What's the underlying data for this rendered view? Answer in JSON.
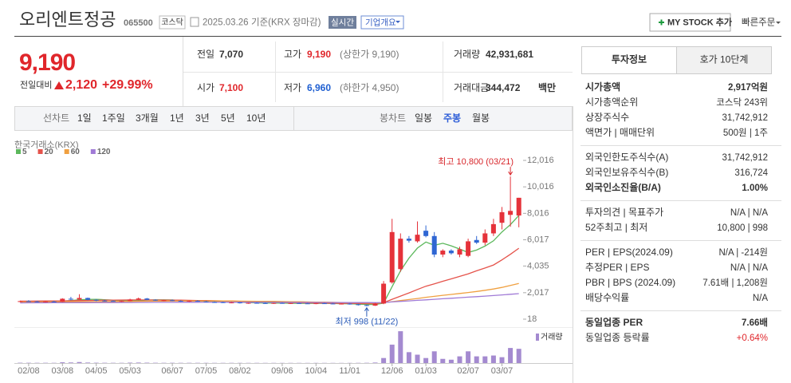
{
  "header": {
    "name": "오리엔트정공",
    "code": "065500",
    "market": "코스닥",
    "date": "2025.03.26",
    "basis": "기준(KRX 장마감)",
    "realtime": "실시간",
    "overview": "기업개요",
    "my_stock": "MY STOCK 추가",
    "quick_order": "빠른주문"
  },
  "price": {
    "current": "9,190",
    "change_label": "전일대비",
    "change": "2,120",
    "change_pct": "+29.99%"
  },
  "summary": [
    {
      "label": "전일",
      "value": "7,070"
    },
    {
      "label": "고가",
      "value": "9,190",
      "note": "(상한가 9,190)",
      "color": "#e0262b"
    },
    {
      "label": "거래량",
      "value": "42,931,681"
    },
    {
      "label": "시가",
      "value": "7,100",
      "color": "#e0262b"
    },
    {
      "label": "저가",
      "value": "6,960",
      "note": "(하한가 4,950)",
      "color": "#1f5fd1"
    },
    {
      "label": "거래대금",
      "value": "344,472",
      "unit": "백만"
    }
  ],
  "period_tabs": {
    "line_label": "선차트",
    "line": [
      "1일",
      "1주일",
      "3개월",
      "1년",
      "3년",
      "5년",
      "10년"
    ],
    "candle_label": "봉차트",
    "candle": [
      "일봉",
      "주봉",
      "월봉"
    ],
    "selected": "주봉"
  },
  "chart_data": {
    "type": "candlestick",
    "source": "한국거래소(KRX)",
    "categories": [
      null,
      "02/08",
      null,
      null,
      null,
      "03/08",
      null,
      null,
      null,
      "04/05",
      null,
      null,
      null,
      "05/03",
      null,
      null,
      null,
      null,
      "06/07",
      null,
      null,
      null,
      "07/05",
      null,
      null,
      null,
      "08/02",
      null,
      null,
      null,
      null,
      "09/06",
      null,
      null,
      null,
      "10/04",
      null,
      null,
      null,
      "11/01",
      null,
      null,
      null,
      null,
      "12/06",
      null,
      null,
      null,
      "01/03",
      null,
      null,
      null,
      null,
      "02/07",
      null,
      null,
      null,
      "03/07",
      null,
      null
    ],
    "ohlc": {
      "open": [
        1350,
        1380,
        1360,
        1320,
        1350,
        1330,
        1560,
        1500,
        1620,
        1480,
        1420,
        1400,
        1370,
        1390,
        1500,
        1580,
        1480,
        1430,
        1450,
        1400,
        1350,
        1400,
        1360,
        1310,
        1300,
        1260,
        1280,
        1220,
        1250,
        1230,
        1210,
        1240,
        1200,
        1230,
        1210,
        1190,
        1220,
        1200,
        1170,
        1190,
        1140,
        1080,
        1040,
        1200,
        2800,
        3800,
        6100,
        5900,
        6700,
        6300,
        4900,
        5200,
        4900,
        4800,
        6000,
        5800,
        6500,
        7300,
        7900,
        7850
      ],
      "high": [
        1420,
        1450,
        1400,
        1380,
        1400,
        1600,
        1700,
        1900,
        1650,
        1520,
        1480,
        1440,
        1420,
        1560,
        1650,
        1620,
        1520,
        1480,
        1500,
        1440,
        1420,
        1450,
        1400,
        1360,
        1340,
        1320,
        1310,
        1270,
        1290,
        1280,
        1260,
        1280,
        1250,
        1270,
        1250,
        1240,
        1260,
        1240,
        1220,
        1230,
        1180,
        1120,
        1250,
        2900,
        7600,
        6500,
        6300,
        7400,
        7100,
        6600,
        5300,
        5300,
        5500,
        6100,
        6300,
        6800,
        7600,
        8500,
        10800,
        9190
      ],
      "low": [
        1300,
        1330,
        1300,
        1280,
        1300,
        1310,
        1450,
        1480,
        1450,
        1380,
        1350,
        1340,
        1320,
        1370,
        1450,
        1450,
        1400,
        1380,
        1380,
        1330,
        1320,
        1340,
        1290,
        1260,
        1240,
        1220,
        1200,
        1180,
        1200,
        1190,
        1170,
        1190,
        1160,
        1190,
        1170,
        1150,
        1180,
        1150,
        1130,
        1120,
        1050,
        998,
        1020,
        1150,
        2700,
        3600,
        5800,
        5800,
        6200,
        4700,
        4700,
        4900,
        4700,
        4700,
        5700,
        5600,
        6300,
        6800,
        7000,
        6960
      ],
      "close": [
        1380,
        1360,
        1320,
        1350,
        1330,
        1560,
        1500,
        1620,
        1480,
        1420,
        1400,
        1370,
        1390,
        1500,
        1580,
        1480,
        1430,
        1450,
        1400,
        1350,
        1400,
        1360,
        1310,
        1300,
        1260,
        1280,
        1220,
        1250,
        1230,
        1210,
        1240,
        1200,
        1230,
        1210,
        1190,
        1220,
        1200,
        1170,
        1190,
        1140,
        1080,
        1040,
        1200,
        2700,
        6600,
        6100,
        5950,
        6400,
        6300,
        4900,
        5200,
        5000,
        5300,
        5900,
        5800,
        6500,
        7200,
        8100,
        8200,
        9190
      ],
      "up_color": "#e5323a",
      "down_color": "#2f66d3"
    },
    "series": [
      {
        "name": "5",
        "color": "#5cb85c",
        "values": [
          1360,
          1370,
          1365,
          1360,
          1350,
          1380,
          1420,
          1480,
          1510,
          1520,
          1490,
          1450,
          1420,
          1400,
          1420,
          1460,
          1480,
          1480,
          1470,
          1430,
          1400,
          1390,
          1370,
          1350,
          1320,
          1300,
          1290,
          1270,
          1250,
          1240,
          1230,
          1230,
          1220,
          1220,
          1210,
          1210,
          1210,
          1200,
          1190,
          1180,
          1160,
          1130,
          1130,
          1230,
          2470,
          3670,
          4630,
          5390,
          5850,
          5600,
          5750,
          5560,
          5320,
          5060,
          5240,
          5540,
          5940,
          6610,
          7160,
          7850
        ]
      },
      {
        "name": "20",
        "color": "#e5534b",
        "values": [
          1380,
          1380,
          1385,
          1390,
          1390,
          1400,
          1410,
          1420,
          1430,
          1440,
          1450,
          1460,
          1465,
          1470,
          1470,
          1470,
          1465,
          1460,
          1455,
          1450,
          1440,
          1430,
          1420,
          1410,
          1400,
          1390,
          1370,
          1350,
          1330,
          1310,
          1290,
          1280,
          1270,
          1260,
          1250,
          1240,
          1230,
          1220,
          1215,
          1210,
          1200,
          1190,
          1190,
          1260,
          1520,
          1760,
          2000,
          2260,
          2510,
          2690,
          2880,
          3060,
          3250,
          3440,
          3670,
          3880,
          4110,
          4500,
          4920,
          5380
        ]
      },
      {
        "name": "60",
        "color": "#f0a040",
        "values": [
          1300,
          1305,
          1310,
          1315,
          1320,
          1325,
          1330,
          1335,
          1340,
          1345,
          1350,
          1355,
          1360,
          1365,
          1370,
          1375,
          1380,
          1385,
          1390,
          1390,
          1390,
          1390,
          1390,
          1390,
          1390,
          1385,
          1380,
          1375,
          1370,
          1365,
          1360,
          1350,
          1340,
          1330,
          1320,
          1310,
          1300,
          1290,
          1280,
          1270,
          1260,
          1250,
          1240,
          1260,
          1340,
          1420,
          1500,
          1580,
          1670,
          1740,
          1820,
          1890,
          1960,
          2030,
          2110,
          2200,
          2300,
          2420,
          2560,
          2720
        ]
      },
      {
        "name": "120",
        "color": "#a07ad6",
        "values": [
          1250,
          1252,
          1254,
          1256,
          1258,
          1260,
          1262,
          1265,
          1268,
          1270,
          1272,
          1275,
          1278,
          1280,
          1282,
          1285,
          1288,
          1290,
          1292,
          1294,
          1296,
          1298,
          1300,
          1300,
          1300,
          1300,
          1300,
          1298,
          1296,
          1294,
          1292,
          1290,
          1288,
          1286,
          1284,
          1282,
          1280,
          1278,
          1276,
          1274,
          1272,
          1270,
          1268,
          1280,
          1320,
          1360,
          1400,
          1440,
          1480,
          1520,
          1560,
          1600,
          1640,
          1680,
          1720,
          1760,
          1800,
          1850,
          1900,
          1950
        ]
      }
    ],
    "volume": {
      "name": "거래량",
      "color": "#a48ad0",
      "lim": [
        0,
        40000000
      ],
      "values": [
        400000,
        350000,
        300000,
        320000,
        280000,
        900000,
        700000,
        1200000,
        600000,
        400000,
        350000,
        300000,
        280000,
        500000,
        600000,
        450000,
        350000,
        300000,
        320000,
        280000,
        300000,
        280000,
        250000,
        240000,
        230000,
        260000,
        240000,
        220000,
        230000,
        210000,
        220000,
        200000,
        210000,
        200000,
        190000,
        210000,
        200000,
        190000,
        180000,
        200000,
        250000,
        300000,
        600000,
        6000000,
        22000000,
        38000000,
        13000000,
        10000000,
        6000000,
        14000000,
        5000000,
        4000000,
        8000000,
        14000000,
        8000000,
        8000000,
        9000000,
        7000000,
        18000000,
        17000000
      ]
    },
    "ylim": [
      18,
      12016
    ],
    "yticks": [
      {
        "value": 12016,
        "label": "12,016"
      },
      {
        "value": 10016,
        "label": "10,016"
      },
      {
        "value": 8016,
        "label": "8,016"
      },
      {
        "value": 6017,
        "label": "6,017"
      },
      {
        "value": 4035,
        "label": "4,035"
      },
      {
        "value": 2017,
        "label": "2,017"
      },
      18
    ],
    "grid": false,
    "annotations": {
      "high": "최고 10,800 (03/21)",
      "low": "최저 998 (11/22)"
    }
  },
  "info": {
    "tabs": [
      "투자정보",
      "호가 10단계"
    ],
    "groups": [
      [
        {
          "label": "시가총액",
          "value": "2,917억원",
          "strong": true
        },
        {
          "label": "시가총액순위",
          "value": "코스닥 243위"
        },
        {
          "label": "상장주식수",
          "value": "31,742,912"
        },
        {
          "label": "액면가 | 매매단위",
          "value": "500원 | 1주"
        }
      ],
      [
        {
          "label": "외국인한도주식수(A)",
          "value": "31,742,912"
        },
        {
          "label": "외국인보유주식수(B)",
          "value": "316,724"
        },
        {
          "label": "외국인소진율(B/A)",
          "value": "1.00%",
          "strong": true
        }
      ],
      [
        {
          "label": "투자의견 | 목표주가",
          "value": "N/A | N/A"
        },
        {
          "label": "52주최고 | 최저",
          "value": "10,800 | 998"
        }
      ],
      [
        {
          "label": "PER | EPS(2024.09)",
          "value": "N/A | -214원"
        },
        {
          "label": "추정PER | EPS",
          "value": "N/A | N/A"
        },
        {
          "label": "PBR | BPS (2024.09)",
          "value": "7.61배 | 1,208원"
        },
        {
          "label": "배당수익률",
          "value": "N/A"
        }
      ],
      [
        {
          "label": "동일업종 PER",
          "value": "7.66배",
          "strong": true
        },
        {
          "label": "동일업종 등락률",
          "value": "+0.64%",
          "color": "#e0262b"
        }
      ]
    ]
  }
}
